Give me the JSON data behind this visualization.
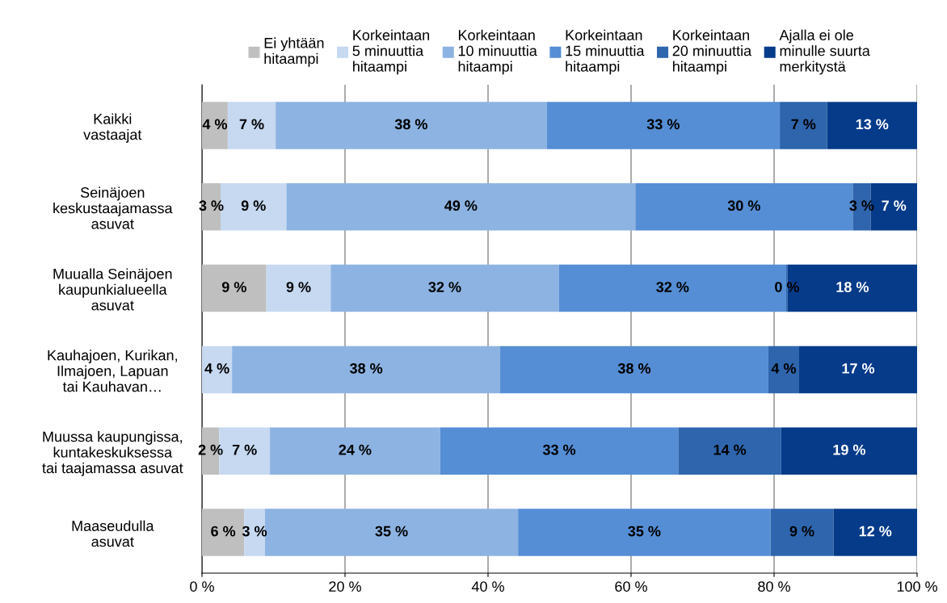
{
  "chart_data": {
    "type": "bar",
    "orientation": "horizontal",
    "stacked": true,
    "categories": [
      "Kaikki\nvastaajat",
      "Seinäjoen\nkeskustaajamassa\nasuvat",
      "Muualla Seinäjoen\nkaupunkialueella\nasuvat",
      "Kauhajoen, Kurikan,\nIlmajoen, Lapuan\ntai Kauhavan…",
      "Muussa kaupungissa,\nkuntakeskuksessa\ntai taajamassa asuvat",
      "Maaseudulla\nasuvat"
    ],
    "series": [
      {
        "name": "Ei yhtään\nhitaampi",
        "color": "#bfbfbf",
        "values": [
          3.6,
          2.6,
          9.0,
          0,
          2.4,
          5.9
        ],
        "value_labels": [
          "4 %",
          "3 %",
          "9 %",
          null,
          "2 %",
          "6 %"
        ]
      },
      {
        "name": "Korkeintaan\n5 minuuttia\nhitaampi",
        "color": "#c6d9f1",
        "values": [
          6.7,
          9.2,
          9.0,
          4.2,
          7.1,
          2.9
        ],
        "value_labels": [
          "7 %",
          "9 %",
          "9 %",
          "4 %",
          "7 %",
          "3 %"
        ]
      },
      {
        "name": "Korkeintaan\n10 minuuttia\nhitaampi",
        "color": "#8db3e2",
        "values": [
          37.9,
          48.8,
          31.9,
          37.5,
          23.8,
          35.4
        ],
        "value_labels": [
          "38 %",
          "49 %",
          "32 %",
          "38 %",
          "24 %",
          "35 %"
        ]
      },
      {
        "name": "Korkeintaan\n15 minuuttia\nhitaampi",
        "color": "#558ed5",
        "values": [
          32.6,
          30.4,
          31.8,
          37.5,
          33.3,
          35.3
        ],
        "value_labels": [
          "33 %",
          "30 %",
          "32 %",
          "38 %",
          "33 %",
          "35 %"
        ]
      },
      {
        "name": "Korkeintaan\n20 minuuttia\nhitaampi",
        "color": "#2e65ad",
        "values": [
          6.6,
          2.5,
          0.2,
          4.3,
          14.4,
          8.8
        ],
        "value_labels": [
          "7 %",
          "3 %",
          "0 %",
          "4 %",
          "14 %",
          "9 %"
        ]
      },
      {
        "name": "Ajalla ei ole\nminulle suurta\nmerkitystä",
        "color": "#063b8a",
        "values": [
          12.6,
          6.5,
          18.1,
          16.6,
          19.0,
          11.8
        ],
        "value_labels": [
          "13 %",
          "7 %",
          "18 %",
          "17 %",
          "19 %",
          "12 %"
        ]
      }
    ],
    "xlim": [
      0,
      100
    ],
    "xticks": [
      {
        "value": 0,
        "label": "0 %"
      },
      {
        "value": 20,
        "label": "20 %"
      },
      {
        "value": 40,
        "label": "40 %"
      },
      {
        "value": 60,
        "label": "60 %"
      },
      {
        "value": 80,
        "label": "80 %"
      },
      {
        "value": 100,
        "label": "100 %"
      }
    ],
    "grid": "x",
    "legend": "top"
  }
}
